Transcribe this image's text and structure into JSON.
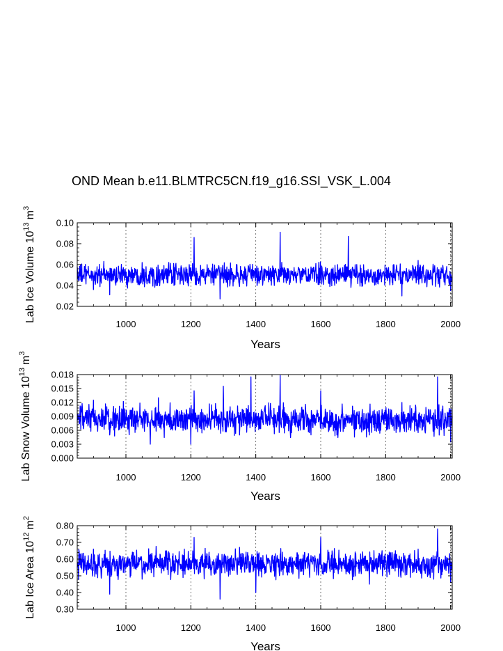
{
  "title": "OND Mean b.e11.BLMTRC5CN.f19_g16.SSI_VSK_L.004",
  "colors": {
    "series": "#0000ff",
    "axis": "#000000",
    "grid": "#555555"
  },
  "chart_data": [
    {
      "type": "line",
      "ylabel_text": "Lab Ice Volume 10",
      "ylabel_exp": "13",
      "ylabel_unit": "m",
      "ylabel_unit_exp": "3",
      "xlabel": "Years",
      "xlim": [
        850,
        2005
      ],
      "ylim": [
        0.02,
        0.1
      ],
      "x_ticks": [
        "1000",
        "1200",
        "1400",
        "1600",
        "1800",
        "2000"
      ],
      "y_ticks": [
        "0.02",
        "0.04",
        "0.06",
        "0.08",
        "0.10"
      ],
      "series": [
        {
          "name": "Lab Ice Volume",
          "mean": 0.05,
          "spread": 0.0075,
          "x": [
            850,
            900,
            950,
            1000,
            1050,
            1100,
            1150,
            1200,
            1210,
            1250,
            1290,
            1300,
            1350,
            1400,
            1450,
            1475,
            1500,
            1550,
            1600,
            1650,
            1685,
            1700,
            1750,
            1800,
            1850,
            1900,
            1950,
            2000,
            2005
          ],
          "values": [
            0.058,
            0.036,
            0.031,
            0.049,
            0.062,
            0.051,
            0.052,
            0.057,
            0.086,
            0.06,
            0.027,
            0.052,
            0.039,
            0.055,
            0.05,
            0.091,
            0.056,
            0.053,
            0.05,
            0.049,
            0.087,
            0.055,
            0.052,
            0.05,
            0.03,
            0.064,
            0.053,
            0.035,
            0.048
          ]
        }
      ]
    },
    {
      "type": "line",
      "ylabel_text": "Lab Snow Volume 10",
      "ylabel_exp": "13",
      "ylabel_unit": "m",
      "ylabel_unit_exp": "3",
      "xlabel": "Years",
      "xlim": [
        850,
        2005
      ],
      "ylim": [
        0.0,
        0.018
      ],
      "x_ticks": [
        "1000",
        "1200",
        "1400",
        "1600",
        "1800",
        "2000"
      ],
      "y_ticks": [
        "0.000",
        "0.003",
        "0.006",
        "0.009",
        "0.012",
        "0.015",
        "0.018"
      ],
      "series": [
        {
          "name": "Lab Snow Volume",
          "mean": 0.0083,
          "spread": 0.0022,
          "x": [
            850,
            900,
            950,
            1000,
            1050,
            1075,
            1100,
            1150,
            1200,
            1210,
            1250,
            1300,
            1350,
            1385,
            1400,
            1450,
            1475,
            1500,
            1550,
            1600,
            1650,
            1700,
            1750,
            1800,
            1850,
            1900,
            1960,
            2000,
            2005
          ],
          "values": [
            0.0095,
            0.0125,
            0.005,
            0.008,
            0.0085,
            0.003,
            0.013,
            0.008,
            0.003,
            0.0145,
            0.0095,
            0.0155,
            0.005,
            0.0175,
            0.007,
            0.0085,
            0.0178,
            0.009,
            0.008,
            0.0145,
            0.005,
            0.0095,
            0.005,
            0.008,
            0.012,
            0.0055,
            0.0175,
            0.0035,
            0.009
          ]
        }
      ]
    },
    {
      "type": "line",
      "ylabel_text": "Lab Ice Area 10",
      "ylabel_exp": "12",
      "ylabel_unit": "m",
      "ylabel_unit_exp": "2",
      "xlabel": "Years",
      "xlim": [
        850,
        2005
      ],
      "ylim": [
        0.3,
        0.8
      ],
      "x_ticks": [
        "1000",
        "1200",
        "1400",
        "1600",
        "1800",
        "2000"
      ],
      "y_ticks": [
        "0.30",
        "0.40",
        "0.50",
        "0.60",
        "0.70",
        "0.80"
      ],
      "series": [
        {
          "name": "Lab Ice Area",
          "mean": 0.57,
          "spread": 0.055,
          "x": [
            850,
            900,
            950,
            1000,
            1050,
            1100,
            1150,
            1200,
            1210,
            1250,
            1290,
            1300,
            1350,
            1400,
            1450,
            1500,
            1550,
            1600,
            1650,
            1700,
            1750,
            1800,
            1850,
            1900,
            1960,
            2000,
            2005
          ],
          "values": [
            0.55,
            0.66,
            0.39,
            0.58,
            0.48,
            0.56,
            0.57,
            0.54,
            0.73,
            0.63,
            0.36,
            0.55,
            0.67,
            0.4,
            0.62,
            0.58,
            0.64,
            0.73,
            0.56,
            0.6,
            0.45,
            0.58,
            0.53,
            0.66,
            0.78,
            0.46,
            0.59
          ]
        }
      ]
    }
  ]
}
